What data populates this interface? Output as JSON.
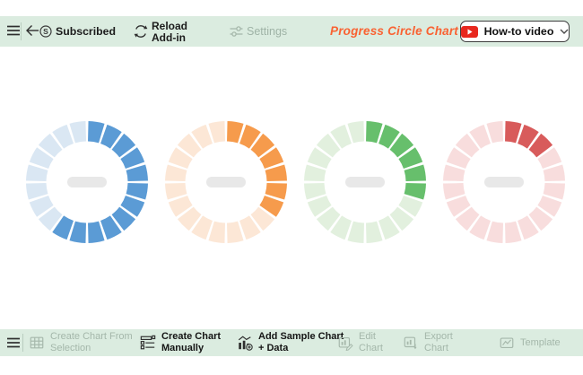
{
  "topbar": {
    "subscribed_label": "Subscribed",
    "reload_line1": "Reload",
    "reload_line2": "Add-in",
    "settings_label": "Settings",
    "title": "Progress Circle Chart",
    "howto_label": "How-to video"
  },
  "bottombar": {
    "items": [
      {
        "label1": "Create Chart From",
        "label2": "Selection",
        "enabled": false
      },
      {
        "label1": "Create Chart",
        "label2": "Manually",
        "enabled": true
      },
      {
        "label1": "Add Sample Chart",
        "label2": "+ Data",
        "enabled": true
      },
      {
        "label1": "Edit",
        "label2": "Chart",
        "enabled": false
      },
      {
        "label1": "Export",
        "label2": "Chart",
        "enabled": false
      },
      {
        "label1": "Template",
        "label2": "",
        "enabled": false
      }
    ]
  },
  "chart_data": {
    "type": "donut-progress",
    "title": "",
    "segments_per_ring": 20,
    "legend_position": "none",
    "rings": [
      {
        "name": "blue",
        "percent": 60,
        "filled_segments": 12,
        "fill_color": "#5B9BD5",
        "track_color": "#DAE7F3"
      },
      {
        "name": "orange",
        "percent": 35,
        "filled_segments": 7,
        "fill_color": "#F69B4C",
        "track_color": "#FCE7D6"
      },
      {
        "name": "green",
        "percent": 30,
        "filled_segments": 6,
        "fill_color": "#67BF6C",
        "track_color": "#E2F0DE"
      },
      {
        "name": "red",
        "percent": 15,
        "filled_segments": 3,
        "fill_color": "#D85B5B",
        "track_color": "#F8DDDD"
      }
    ]
  },
  "colors": {
    "toolbar_green": "#DBECE0",
    "title_orange": "#F96232",
    "youtube_red": "#E8281E",
    "disabled_gray_green": "#A4B7AA",
    "center_dash_gray": "#E8E8E8"
  }
}
